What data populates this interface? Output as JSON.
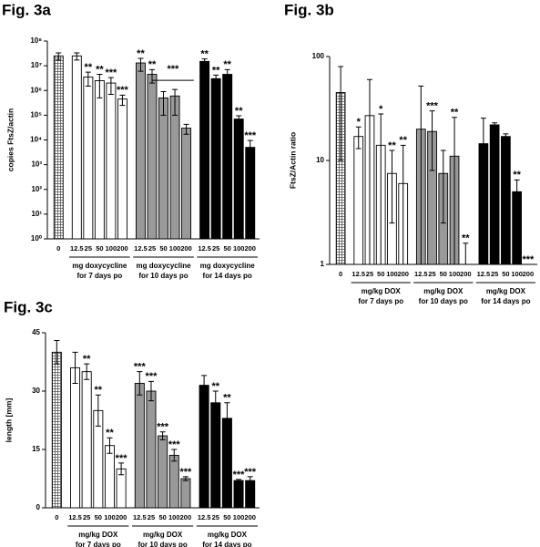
{
  "chart_data": [
    {
      "type": "bar",
      "title": "Fig. 3a",
      "ylabel": "copies FtsZ/actin",
      "log": true,
      "ylim": [
        1,
        100000000
      ],
      "yticks": [
        {
          "value": 1,
          "label": "10⁰"
        },
        {
          "value": 10,
          "label": "10¹"
        },
        {
          "value": 100,
          "label": "10²"
        },
        {
          "value": 1000,
          "label": "10³"
        },
        {
          "value": 10000,
          "label": "10⁴"
        },
        {
          "value": 100000,
          "label": "10⁵"
        },
        {
          "value": 1000000,
          "label": "10⁶"
        },
        {
          "value": 10000000,
          "label": "10⁷"
        },
        {
          "value": 100000000,
          "label": "10⁸"
        }
      ],
      "categories": [
        "0",
        "12.5",
        "25",
        "50",
        "100",
        "200",
        "12.5",
        "25",
        "50",
        "100",
        "200",
        "12.5",
        "25",
        "50",
        "100",
        "200"
      ],
      "values": [
        25000000,
        25000000,
        3500000,
        2500000,
        2000000,
        450000,
        13000000,
        4500000,
        500000,
        600000,
        30000,
        15000000,
        3000000,
        4500000,
        70000,
        5000
      ],
      "errors": [
        8000000,
        8000000,
        2000000,
        2000000,
        1300000,
        200000,
        7000000,
        2500000,
        400000,
        500000,
        13000,
        4000000,
        1200000,
        2500000,
        25000,
        4500
      ],
      "annotations": [
        null,
        null,
        "**",
        "**",
        "***",
        "***",
        "**",
        "**",
        null,
        null,
        null,
        "**",
        "**",
        "**",
        "**",
        "***"
      ],
      "bar_fills": [
        "hatch",
        "#ffffff",
        "#ffffff",
        "#ffffff",
        "#ffffff",
        "#ffffff",
        "#999999",
        "#999999",
        "#999999",
        "#999999",
        "#999999",
        "#000000",
        "#000000",
        "#000000",
        "#000000",
        "#000000"
      ],
      "group_labels": [
        [
          "mg doxycycline",
          "for 7 days po"
        ],
        [
          "mg doxycycline",
          "for 10 days po"
        ],
        [
          "mg doxycycline",
          "for 14 days po"
        ]
      ],
      "bracket_label": "***"
    },
    {
      "type": "bar",
      "title": "Fig. 3b",
      "ylabel": "FtsZ/Actin ratio",
      "log": true,
      "ylim": [
        1,
        100
      ],
      "yticks": [
        1,
        10,
        100
      ],
      "categories": [
        "0",
        "12.5",
        "25",
        "50",
        "100",
        "200",
        "12.5",
        "25",
        "50",
        "100",
        "200",
        "12.5",
        "25",
        "50",
        "100",
        "200"
      ],
      "values": [
        45,
        17,
        27,
        14,
        7.5,
        6,
        20,
        19,
        7.5,
        11,
        1,
        14.5,
        22,
        17,
        5,
        1
      ],
      "errors": [
        35,
        4,
        33,
        14,
        5,
        8,
        32,
        11,
        5,
        15,
        0.6,
        11,
        1,
        1,
        1.5,
        0
      ],
      "annotations": [
        null,
        "*",
        null,
        "*",
        "**",
        "**",
        null,
        "***",
        null,
        "**",
        "**",
        null,
        null,
        null,
        "**",
        "***"
      ],
      "bar_fills": [
        "hatch",
        "#ffffff",
        "#ffffff",
        "#ffffff",
        "#ffffff",
        "#ffffff",
        "#999999",
        "#999999",
        "#999999",
        "#999999",
        "#999999",
        "#000000",
        "#000000",
        "#000000",
        "#000000",
        "#000000"
      ],
      "group_labels": [
        [
          "mg/kg DOX",
          "for 7 days po"
        ],
        [
          "mg/kg DOX",
          "for 10 days po"
        ],
        [
          "mg/kg DOX",
          "for 14 days po"
        ]
      ]
    },
    {
      "type": "bar",
      "title": "Fig. 3c",
      "ylabel": "length [mm]",
      "log": false,
      "ylim": [
        0,
        45
      ],
      "yticks": [
        0,
        15,
        30,
        45
      ],
      "categories": [
        "0",
        "12.5",
        "25",
        "50",
        "100",
        "200",
        "12.5",
        "25",
        "50",
        "100",
        "200",
        "12.5",
        "25",
        "50",
        "100",
        "200"
      ],
      "values": [
        40,
        36,
        35,
        25,
        16,
        10,
        32,
        30,
        18.5,
        13.5,
        7.5,
        31.5,
        27,
        23,
        7,
        7
      ],
      "errors": [
        3,
        4,
        2,
        4,
        2,
        1.5,
        3,
        2.5,
        1,
        1.5,
        0.5,
        2.5,
        3,
        4,
        0.3,
        1
      ],
      "annotations": [
        null,
        null,
        "**",
        "**",
        "**",
        "***",
        "***",
        "***",
        "***",
        "***",
        "***",
        null,
        "**",
        "**",
        "***",
        "***"
      ],
      "bar_fills": [
        "hatch",
        "#ffffff",
        "#ffffff",
        "#ffffff",
        "#ffffff",
        "#ffffff",
        "#999999",
        "#999999",
        "#999999",
        "#999999",
        "#999999",
        "#000000",
        "#000000",
        "#000000",
        "#000000",
        "#000000"
      ],
      "group_labels": [
        [
          "mg/kg DOX",
          "for 7 days po"
        ],
        [
          "mg/kg DOX",
          "for 10 days po"
        ],
        [
          "mg/kg DOX",
          "for 14 days po"
        ]
      ]
    }
  ]
}
